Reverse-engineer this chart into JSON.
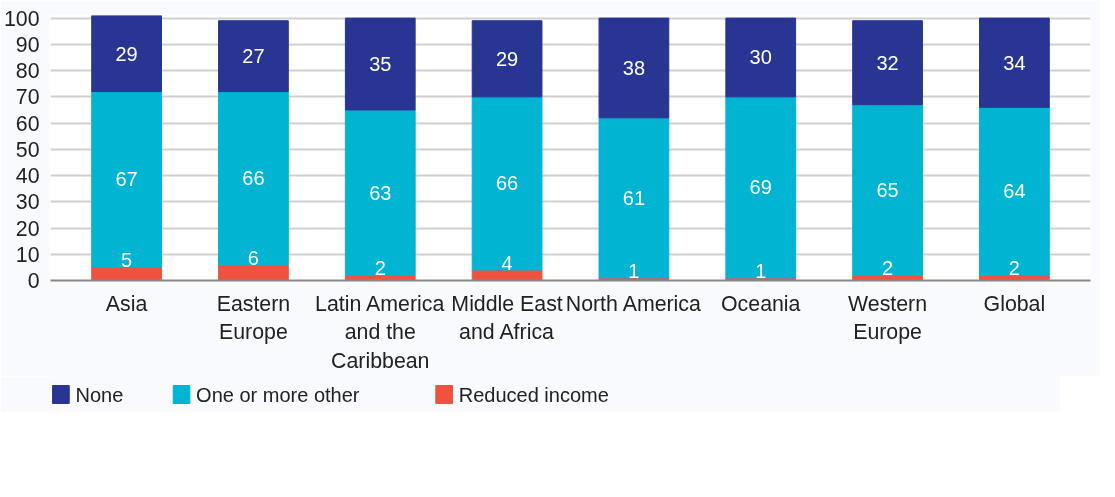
{
  "chart_data": {
    "type": "bar",
    "stacked": true,
    "categories": [
      "Asia",
      "Eastern Europe",
      "Latin America and the Caribbean",
      "Middle East and Africa",
      "North America",
      "Oceania",
      "Western Europe",
      "Global"
    ],
    "series": [
      {
        "name": "Reduced income",
        "color": "#ef5340",
        "values": [
          5,
          6,
          2,
          4,
          1,
          1,
          2,
          2
        ]
      },
      {
        "name": "One or more other",
        "color": "#00b4d2",
        "values": [
          67,
          66,
          63,
          66,
          61,
          69,
          65,
          64
        ]
      },
      {
        "name": "None",
        "color": "#283593",
        "values": [
          29,
          27,
          35,
          29,
          38,
          30,
          32,
          34
        ]
      }
    ],
    "ylim": [
      0,
      101
    ],
    "yticks": [
      0,
      10,
      20,
      30,
      40,
      50,
      60,
      70,
      80,
      90,
      100
    ],
    "grid": "y",
    "data_labels": true,
    "legend": "bottom"
  }
}
